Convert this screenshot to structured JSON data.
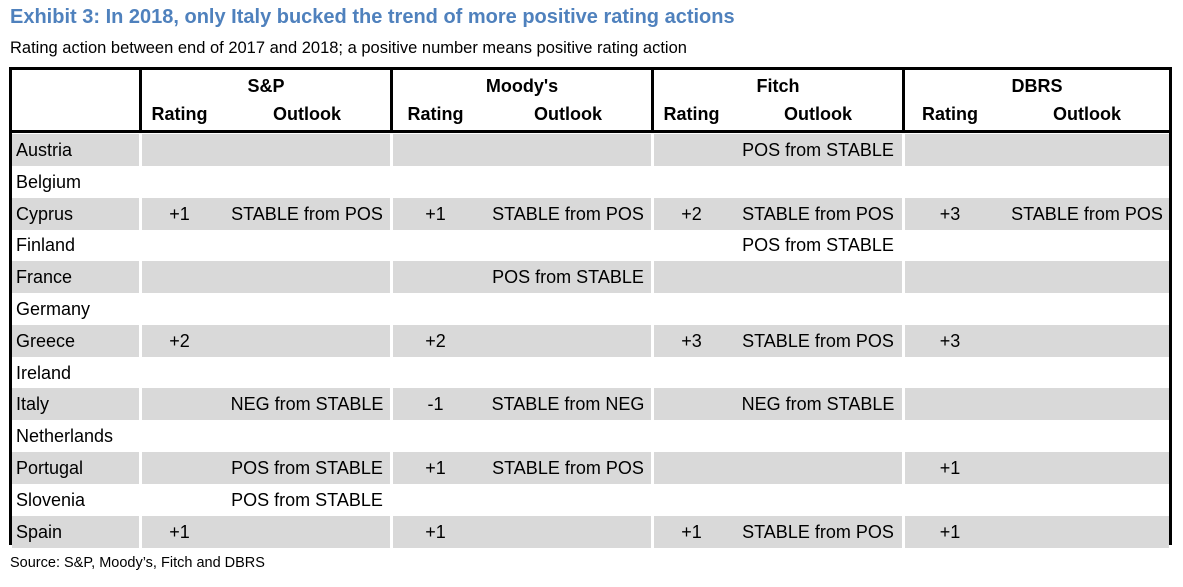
{
  "title": "Exhibit 3: In 2018, only Italy bucked the trend of more positive rating actions",
  "subtitle": "Rating action between end of 2017 and 2018; a positive number means positive rating action",
  "agencies": [
    "S&P",
    "Moody's",
    "Fitch",
    "DBRS"
  ],
  "column_headers": {
    "rating": "Rating",
    "outlook": "Outlook"
  },
  "rows": [
    {
      "country": "Austria",
      "sp_rating": "",
      "sp_outlook": "",
      "moodys_rating": "",
      "moodys_outlook": "",
      "fitch_rating": "",
      "fitch_outlook": "POS from STABLE",
      "dbrs_rating": "",
      "dbrs_outlook": ""
    },
    {
      "country": "Belgium",
      "sp_rating": "",
      "sp_outlook": "",
      "moodys_rating": "",
      "moodys_outlook": "",
      "fitch_rating": "",
      "fitch_outlook": "",
      "dbrs_rating": "",
      "dbrs_outlook": ""
    },
    {
      "country": "Cyprus",
      "sp_rating": "+1",
      "sp_outlook": "STABLE from POS",
      "moodys_rating": "+1",
      "moodys_outlook": "STABLE from POS",
      "fitch_rating": "+2",
      "fitch_outlook": "STABLE from POS",
      "dbrs_rating": "+3",
      "dbrs_outlook": "STABLE from POS"
    },
    {
      "country": "Finland",
      "sp_rating": "",
      "sp_outlook": "",
      "moodys_rating": "",
      "moodys_outlook": "",
      "fitch_rating": "",
      "fitch_outlook": "POS from STABLE",
      "dbrs_rating": "",
      "dbrs_outlook": ""
    },
    {
      "country": "France",
      "sp_rating": "",
      "sp_outlook": "",
      "moodys_rating": "",
      "moodys_outlook": "POS from STABLE",
      "fitch_rating": "",
      "fitch_outlook": "",
      "dbrs_rating": "",
      "dbrs_outlook": ""
    },
    {
      "country": "Germany",
      "sp_rating": "",
      "sp_outlook": "",
      "moodys_rating": "",
      "moodys_outlook": "",
      "fitch_rating": "",
      "fitch_outlook": "",
      "dbrs_rating": "",
      "dbrs_outlook": ""
    },
    {
      "country": "Greece",
      "sp_rating": "+2",
      "sp_outlook": "",
      "moodys_rating": "+2",
      "moodys_outlook": "",
      "fitch_rating": "+3",
      "fitch_outlook": "STABLE from POS",
      "dbrs_rating": "+3",
      "dbrs_outlook": ""
    },
    {
      "country": "Ireland",
      "sp_rating": "",
      "sp_outlook": "",
      "moodys_rating": "",
      "moodys_outlook": "",
      "fitch_rating": "",
      "fitch_outlook": "",
      "dbrs_rating": "",
      "dbrs_outlook": ""
    },
    {
      "country": "Italy",
      "sp_rating": "",
      "sp_outlook": "NEG from STABLE",
      "moodys_rating": "-1",
      "moodys_outlook": "STABLE from NEG",
      "fitch_rating": "",
      "fitch_outlook": "NEG from STABLE",
      "dbrs_rating": "",
      "dbrs_outlook": ""
    },
    {
      "country": "Netherlands",
      "sp_rating": "",
      "sp_outlook": "",
      "moodys_rating": "",
      "moodys_outlook": "",
      "fitch_rating": "",
      "fitch_outlook": "",
      "dbrs_rating": "",
      "dbrs_outlook": ""
    },
    {
      "country": "Portugal",
      "sp_rating": "",
      "sp_outlook": "POS from STABLE",
      "moodys_rating": "+1",
      "moodys_outlook": "STABLE from POS",
      "fitch_rating": "",
      "fitch_outlook": "",
      "dbrs_rating": "+1",
      "dbrs_outlook": ""
    },
    {
      "country": "Slovenia",
      "sp_rating": "",
      "sp_outlook": "POS from STABLE",
      "moodys_rating": "",
      "moodys_outlook": "",
      "fitch_rating": "",
      "fitch_outlook": "",
      "dbrs_rating": "",
      "dbrs_outlook": ""
    },
    {
      "country": "Spain",
      "sp_rating": "+1",
      "sp_outlook": "",
      "moodys_rating": "+1",
      "moodys_outlook": "",
      "fitch_rating": "+1",
      "fitch_outlook": "STABLE from POS",
      "dbrs_rating": "+1",
      "dbrs_outlook": ""
    }
  ],
  "source": "Source: S&P, Moody’s, Fitch and DBRS",
  "colors": {
    "title": "#4f81bd",
    "row_shade": "#d9d9d9",
    "border": "#000000"
  }
}
